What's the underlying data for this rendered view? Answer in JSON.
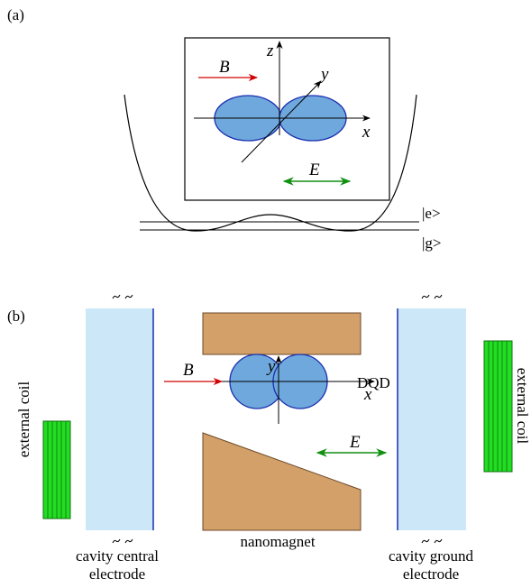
{
  "panel_a": {
    "label": "(a)",
    "b_field": "B",
    "axis_z": "z",
    "axis_y": "y",
    "axis_x": "x",
    "e_field": "E",
    "level_e": "|e>",
    "level_g": "|g>"
  },
  "panel_b": {
    "label": "(b)",
    "b_field": "B",
    "axis_y": "y",
    "axis_x": "x",
    "dqd": "DQD",
    "e_field": "E",
    "coil_left": "external coil",
    "coil_right": "external coil",
    "electrode_left": [
      "cavity central",
      "electrode"
    ],
    "nanomagnet": "nanomagnet",
    "electrode_right": [
      "cavity ground",
      "electrode"
    ]
  }
}
